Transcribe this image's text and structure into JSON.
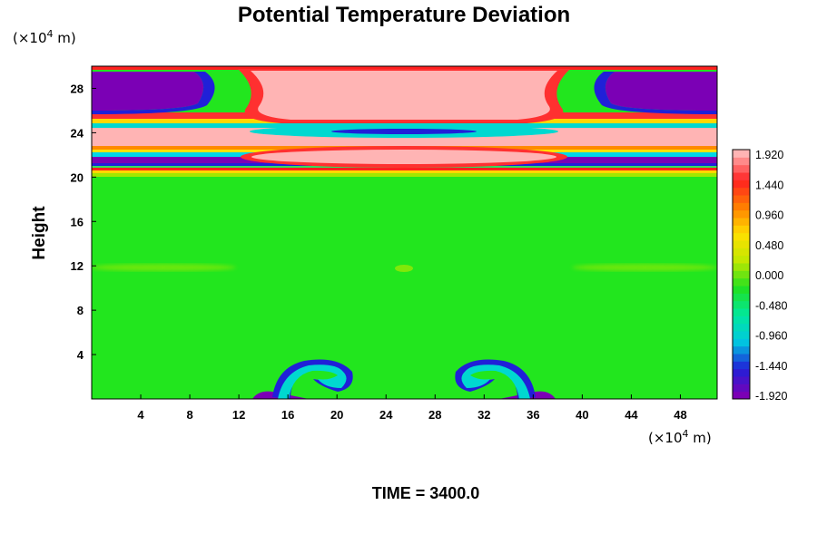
{
  "chart_data": {
    "type": "heatmap",
    "title": "Potential Temperature Deviation",
    "ylabel": "Height",
    "y_unit": "(×10",
    "x_unit": "(×10",
    "unit_exponent": "4",
    "unit_suffix": " m)",
    "xlim": [
      0,
      51
    ],
    "ylim": [
      0,
      30
    ],
    "x_ticks": [
      "4",
      "8",
      "12",
      "16",
      "20",
      "24",
      "28",
      "32",
      "36",
      "40",
      "44",
      "48"
    ],
    "y_ticks": [
      "4",
      "8",
      "12",
      "16",
      "20",
      "24",
      "28"
    ],
    "x_tick_values": [
      4,
      8,
      12,
      16,
      20,
      24,
      28,
      32,
      36,
      40,
      44,
      48
    ],
    "y_tick_values": [
      4,
      8,
      12,
      16,
      20,
      24,
      28
    ],
    "colorbar": {
      "labels": [
        "1.920",
        "1.440",
        "0.960",
        "0.480",
        "0.000",
        "-0.480",
        "-0.960",
        "-1.440",
        "-1.920"
      ],
      "values": [
        1.92,
        1.44,
        0.96,
        0.48,
        0.0,
        -0.48,
        -0.96,
        -1.44,
        -1.92
      ],
      "levels": 33,
      "min": -1.92,
      "max": 1.92,
      "colors": [
        "#7b00b5",
        "#2020d8",
        "#00c8e0",
        "#00e89c",
        "#20e020",
        "#c0e800",
        "#ffe000",
        "#ff8000",
        "#ff2020",
        "#ffb4b4"
      ]
    },
    "footer": "TIME = 3400.0",
    "grid": false
  }
}
